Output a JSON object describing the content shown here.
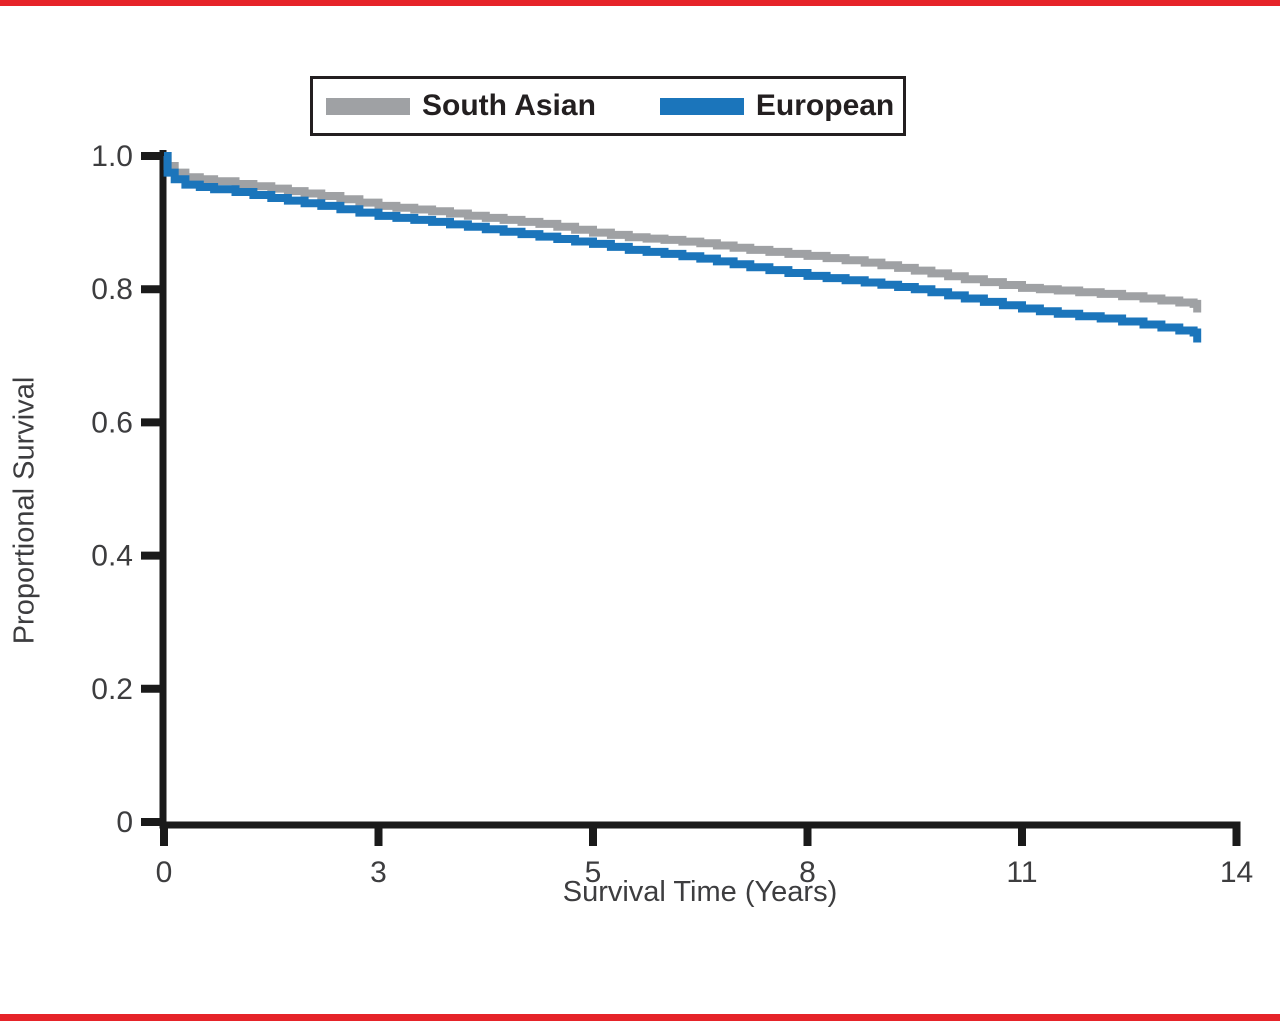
{
  "page": {
    "top_bar_color": "#e62329",
    "bottom_bar_color": "#e62329",
    "background_color": "#ffffff",
    "axis_color": "#1a1a1a",
    "text_color": "#3d3d3f"
  },
  "legend": {
    "items": [
      {
        "label": "South Asian",
        "color": "#9fa1a4"
      },
      {
        "label": "European",
        "color": "#1b75bb"
      }
    ]
  },
  "chart_data": {
    "type": "line",
    "subtype": "kaplan-meier-step",
    "title": "",
    "xlabel": "Survival Time (Years)",
    "ylabel": "Proportional Survival",
    "x_tick_labels": [
      "0",
      "3",
      "5",
      "8",
      "11",
      "14"
    ],
    "x_tick_values": [
      0,
      3,
      5,
      8,
      11,
      14
    ],
    "x_ticks_evenly_spaced": true,
    "y_tick_labels": [
      "1.0",
      "0.8",
      "0.6",
      "0.4",
      "0.2",
      "0"
    ],
    "y_tick_values": [
      1.0,
      0.8,
      0.6,
      0.4,
      0.2,
      0
    ],
    "ylim": [
      0,
      1.0
    ],
    "grid": false,
    "legend_position": "top-center",
    "series": [
      {
        "name": "South Asian",
        "color": "#9fa1a4",
        "points": [
          [
            0,
            1.0
          ],
          [
            0.05,
            0.985
          ],
          [
            0.15,
            0.975
          ],
          [
            0.3,
            0.968
          ],
          [
            0.7,
            0.962
          ],
          [
            1.0,
            0.958
          ],
          [
            1.5,
            0.951
          ],
          [
            2.2,
            0.94
          ],
          [
            3.0,
            0.925
          ],
          [
            3.5,
            0.917
          ],
          [
            4.0,
            0.907
          ],
          [
            4.5,
            0.898
          ],
          [
            5.0,
            0.885
          ],
          [
            5.5,
            0.878
          ],
          [
            6.0,
            0.874
          ],
          [
            6.5,
            0.869
          ],
          [
            7.2,
            0.859
          ],
          [
            8.0,
            0.85
          ],
          [
            8.8,
            0.84
          ],
          [
            9.5,
            0.828
          ],
          [
            10.2,
            0.815
          ],
          [
            11.0,
            0.802
          ],
          [
            11.5,
            0.798
          ],
          [
            12.1,
            0.793
          ],
          [
            12.7,
            0.786
          ],
          [
            13.2,
            0.78
          ],
          [
            13.4,
            0.778
          ],
          [
            13.45,
            0.765
          ]
        ]
      },
      {
        "name": "European",
        "color": "#1b75bb",
        "points": [
          [
            0,
            1.0
          ],
          [
            0.05,
            0.975
          ],
          [
            0.15,
            0.965
          ],
          [
            0.3,
            0.957
          ],
          [
            0.7,
            0.95
          ],
          [
            1.0,
            0.946
          ],
          [
            1.5,
            0.937
          ],
          [
            2.2,
            0.925
          ],
          [
            3.0,
            0.91
          ],
          [
            3.5,
            0.901
          ],
          [
            4.0,
            0.89
          ],
          [
            4.5,
            0.879
          ],
          [
            5.0,
            0.868
          ],
          [
            5.5,
            0.859
          ],
          [
            6.0,
            0.853
          ],
          [
            6.5,
            0.846
          ],
          [
            7.2,
            0.833
          ],
          [
            8.0,
            0.82
          ],
          [
            8.8,
            0.81
          ],
          [
            9.5,
            0.8
          ],
          [
            10.2,
            0.786
          ],
          [
            11.0,
            0.771
          ],
          [
            11.5,
            0.763
          ],
          [
            12.1,
            0.756
          ],
          [
            12.7,
            0.747
          ],
          [
            13.2,
            0.738
          ],
          [
            13.4,
            0.735
          ],
          [
            13.45,
            0.72
          ]
        ]
      }
    ]
  }
}
